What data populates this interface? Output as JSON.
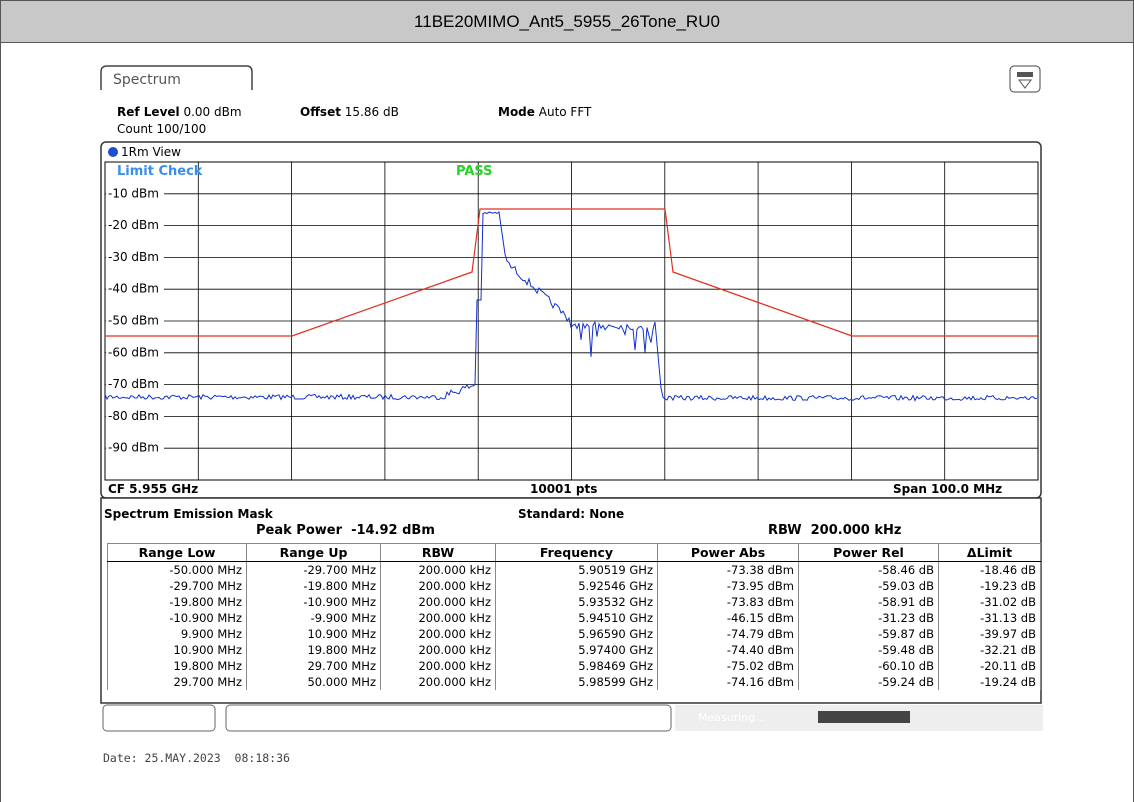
{
  "header": {
    "title": "11BE20MIMO_Ant5_5955_26Tone_RU0"
  },
  "tab": {
    "label": "Spectrum"
  },
  "settings": {
    "ref_level_label": "Ref Level",
    "ref_level": "0.00 dBm",
    "offset_label": "Offset",
    "offset": "15.86 dB",
    "mode_label": "Mode",
    "mode": "Auto FFT",
    "count": "Count 100/100"
  },
  "view": {
    "label": "1Rm View"
  },
  "plot": {
    "limit_check": "Limit Check",
    "result": "PASS",
    "y_labels": [
      "-10 dBm",
      "-20 dBm",
      "-30 dBm",
      "-40 dBm",
      "-50 dBm",
      "-60 dBm",
      "-70 dBm",
      "-80 dBm",
      "-90 dBm"
    ],
    "center": "CF 5.955 GHz",
    "points": "10001 pts",
    "span": "Span 100.0 MHz"
  },
  "sem": {
    "title": "Spectrum Emission Mask",
    "standard": "Standard: None",
    "peak_power_label": "Peak Power",
    "peak_power": "-14.92 dBm",
    "rbw_label": "RBW",
    "rbw": "200.000 kHz"
  },
  "table": {
    "headers": [
      "Range Low",
      "Range Up",
      "RBW",
      "Frequency",
      "Power Abs",
      "Power Rel",
      "ΔLimit"
    ],
    "rows": [
      [
        "-50.000 MHz",
        "-29.700 MHz",
        "200.000 kHz",
        "5.90519 GHz",
        "-73.38 dBm",
        "-58.46 dB",
        "-18.46 dB"
      ],
      [
        "-29.700 MHz",
        "-19.800 MHz",
        "200.000 kHz",
        "5.92546 GHz",
        "-73.95 dBm",
        "-59.03 dB",
        "-19.23 dB"
      ],
      [
        "-19.800 MHz",
        "-10.900 MHz",
        "200.000 kHz",
        "5.93532 GHz",
        "-73.83 dBm",
        "-58.91 dB",
        "-31.02 dB"
      ],
      [
        "-10.900 MHz",
        "-9.900 MHz",
        "200.000 kHz",
        "5.94510 GHz",
        "-46.15 dBm",
        "-31.23 dB",
        "-31.13 dB"
      ],
      [
        "9.900 MHz",
        "10.900 MHz",
        "200.000 kHz",
        "5.96590 GHz",
        "-74.79 dBm",
        "-59.87 dB",
        "-39.97 dB"
      ],
      [
        "10.900 MHz",
        "19.800 MHz",
        "200.000 kHz",
        "5.97400 GHz",
        "-74.40 dBm",
        "-59.48 dB",
        "-32.21 dB"
      ],
      [
        "19.800 MHz",
        "29.700 MHz",
        "200.000 kHz",
        "5.98469 GHz",
        "-75.02 dBm",
        "-60.10 dB",
        "-20.11 dB"
      ],
      [
        "29.700 MHz",
        "50.000 MHz",
        "200.000 kHz",
        "5.98599 GHz",
        "-74.16 dBm",
        "-59.24 dB",
        "-19.24 dB"
      ]
    ]
  },
  "status": {
    "text": "Measuring..."
  },
  "footer": {
    "date": "Date: 25.MAY.2023  08:18:36"
  }
}
